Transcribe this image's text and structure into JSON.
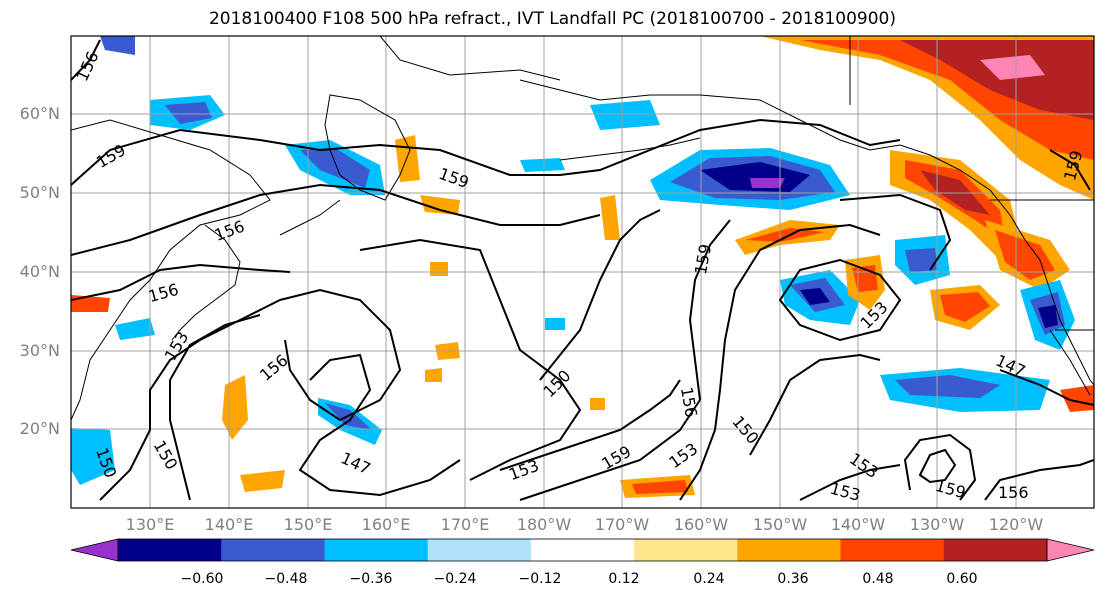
{
  "title": "2018100400 F108 500 hPa refract., IVT Landfall PC (2018100700 - 2018100900)",
  "lat_labels": [
    "60°N",
    "50°N",
    "40°N",
    "30°N",
    "20°N"
  ],
  "lon_labels": [
    "130°E",
    "140°E",
    "150°E",
    "160°E",
    "170°E",
    "180°W",
    "170°W",
    "160°W",
    "150°W",
    "140°W",
    "130°W",
    "120°W"
  ],
  "contour_labels": [
    "156",
    "159",
    "159",
    "156",
    "156",
    "153",
    "156",
    "150",
    "150",
    "147",
    "159",
    "153",
    "159",
    "153",
    "156",
    "150",
    "153",
    "150",
    "153",
    "147",
    "159",
    "156",
    "159",
    "153"
  ],
  "colorbar": {
    "ticks": [
      "−0.60",
      "−0.48",
      "−0.36",
      "−0.24",
      "−0.12",
      "0.12",
      "0.24",
      "0.36",
      "0.48",
      "0.60"
    ],
    "colors": [
      "#9932cc",
      "#00008b",
      "#3a5bd0",
      "#00bfff",
      "#afe3fc",
      "#ffffff",
      "#fde68a",
      "#ffa500",
      "#ff4500",
      "#b22222",
      "#ff85b4"
    ]
  }
}
